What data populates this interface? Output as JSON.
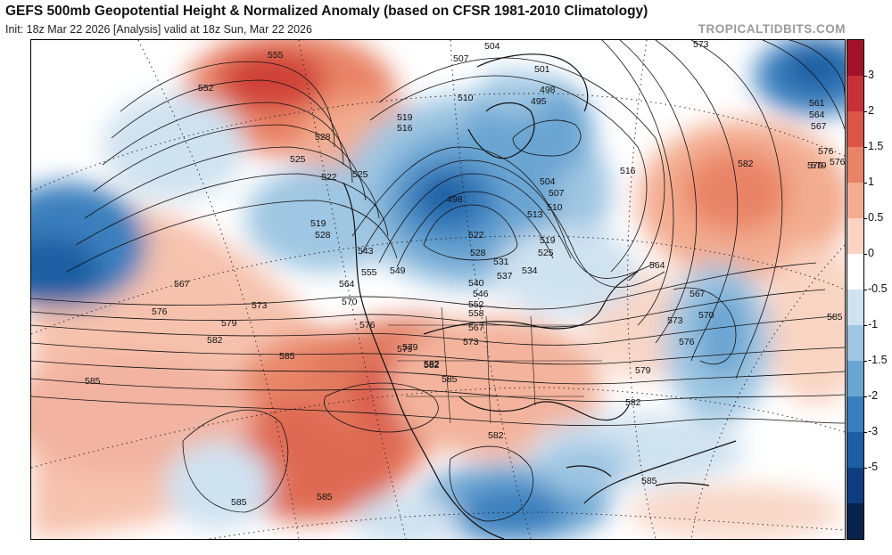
{
  "header": {
    "title": "GEFS 500mb Geopotential Height & Normalized Anomaly (based on CFSR 1981-2010 Climatology)",
    "subtitle": "Init: 18z Mar 22 2026   [Analysis]   valid at 18z Sun, Mar 22 2026",
    "brand": "TROPICALTIDBITS.COM"
  },
  "colorbar": {
    "labels": [
      "3",
      "2",
      "1.5",
      "1",
      "0.5",
      "0",
      "-0.5",
      "-1",
      "-1.5",
      "-2",
      "-3",
      "-5"
    ],
    "colors": [
      "#a3122a",
      "#c6303a",
      "#dc5647",
      "#e98366",
      "#f3ac8f",
      "#fad3c2",
      "#ffffff",
      "#cfe2f0",
      "#9fc6e2",
      "#6aa5d2",
      "#3a7fbd",
      "#1c5ea3",
      "#0d3d7e",
      "#08224f"
    ]
  },
  "contour_labels": [
    "504",
    "507",
    "501",
    "498",
    "495",
    "510",
    "513",
    "516",
    "519",
    "522",
    "525",
    "528",
    "531",
    "534",
    "537",
    "540",
    "543",
    "546",
    "549",
    "552",
    "555",
    "558",
    "561",
    "564",
    "567",
    "570",
    "573",
    "576",
    "579",
    "582",
    "585"
  ],
  "map_labels": [
    {
      "text": "555"
    },
    {
      "text": "552"
    },
    {
      "text": "528"
    },
    {
      "text": "525"
    },
    {
      "text": "522"
    },
    {
      "text": "519"
    },
    {
      "text": "528"
    },
    {
      "text": "543"
    },
    {
      "text": "555"
    },
    {
      "text": "564"
    },
    {
      "text": "570"
    },
    {
      "text": "576"
    },
    {
      "text": "579"
    },
    {
      "text": "582"
    },
    {
      "text": "585"
    },
    {
      "text": "585"
    },
    {
      "text": "567"
    },
    {
      "text": "576"
    },
    {
      "text": "579"
    },
    {
      "text": "582"
    },
    {
      "text": "573"
    },
    {
      "text": "549"
    },
    {
      "text": "525"
    },
    {
      "text": "519"
    },
    {
      "text": "516"
    },
    {
      "text": "504"
    },
    {
      "text": "507"
    },
    {
      "text": "501"
    },
    {
      "text": "498"
    },
    {
      "text": "495"
    },
    {
      "text": "510"
    },
    {
      "text": "498"
    },
    {
      "text": "522"
    },
    {
      "text": "528"
    },
    {
      "text": "531"
    },
    {
      "text": "534"
    },
    {
      "text": "537"
    },
    {
      "text": "540"
    },
    {
      "text": "546"
    },
    {
      "text": "552"
    },
    {
      "text": "558"
    },
    {
      "text": "567"
    },
    {
      "text": "573"
    },
    {
      "text": "579"
    },
    {
      "text": "582"
    },
    {
      "text": "585"
    },
    {
      "text": "504"
    },
    {
      "text": "507"
    },
    {
      "text": "510"
    },
    {
      "text": "513"
    },
    {
      "text": "519"
    },
    {
      "text": "525"
    },
    {
      "text": "516"
    },
    {
      "text": "564"
    },
    {
      "text": "567"
    },
    {
      "text": "570"
    },
    {
      "text": "573"
    },
    {
      "text": "576"
    },
    {
      "text": "579"
    },
    {
      "text": "582"
    },
    {
      "text": "582"
    },
    {
      "text": "585"
    },
    {
      "text": "585"
    },
    {
      "text": "573"
    },
    {
      "text": "576"
    },
    {
      "text": "579"
    },
    {
      "text": "561"
    },
    {
      "text": "564"
    },
    {
      "text": "567"
    },
    {
      "text": "576"
    },
    {
      "text": "579"
    },
    {
      "text": "582"
    },
    {
      "text": "585"
    },
    {
      "text": "585"
    }
  ]
}
